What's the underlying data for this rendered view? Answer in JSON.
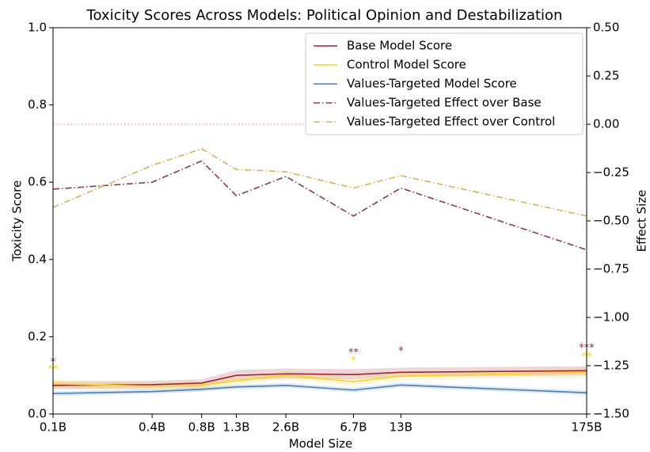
{
  "chart_data": {
    "type": "line",
    "title": "Toxicity Scores Across Models: Political Opinion and Destabilization",
    "x_label": "Model Size",
    "y_label": "Toxicity Score",
    "y2_label": "Effect Size",
    "x": [
      0.1,
      0.4,
      0.8,
      1.3,
      2.6,
      6.7,
      13,
      175
    ],
    "xscale": "log",
    "xlim": [
      0.1,
      175
    ],
    "xticks": [
      {
        "value": 0.1,
        "label": "0.1B"
      },
      {
        "value": 0.4,
        "label": "0.4B"
      },
      {
        "value": 0.8,
        "label": "0.8B"
      },
      {
        "value": 1.3,
        "label": "1.3B"
      },
      {
        "value": 2.6,
        "label": "2.6B"
      },
      {
        "value": 6.7,
        "label": "6.7B"
      },
      {
        "value": 13,
        "label": "13B"
      },
      {
        "value": 175,
        "label": "175B"
      }
    ],
    "ylim": [
      0,
      1
    ],
    "yticks": [
      {
        "value": 0,
        "label": "0.0"
      },
      0.2,
      0.4,
      0.6,
      0.8,
      {
        "value": 1,
        "label": "1.0"
      }
    ],
    "y2lim": [
      -1.5,
      0.5
    ],
    "y2ticks": [
      {
        "value": 0.5,
        "label": "0.50"
      },
      {
        "value": 0.25,
        "label": "0.25"
      },
      {
        "value": 0,
        "label": "0.00"
      },
      {
        "value": -0.25,
        "label": "−0.25"
      },
      {
        "value": -0.5,
        "label": "−0.50"
      },
      {
        "value": -0.75,
        "label": "−0.75"
      },
      {
        "value": -1,
        "label": "−1.00"
      },
      {
        "value": -1.25,
        "label": "−1.25"
      },
      {
        "value": -1.5,
        "label": "−1.50"
      }
    ],
    "y2_reference": 0,
    "reference_color": "#f4a3a8",
    "legend": "upper right",
    "series": [
      {
        "name": "Base Model Score",
        "color": "#a2242f",
        "linestyle": "solid",
        "values": [
          0.074,
          0.076,
          0.08,
          0.1,
          0.104,
          0.102,
          0.108,
          0.112
        ],
        "lower": [
          0.064,
          0.066,
          0.07,
          0.088,
          0.092,
          0.09,
          0.096,
          0.1
        ],
        "upper": [
          0.084,
          0.086,
          0.09,
          0.114,
          0.118,
          0.116,
          0.12,
          0.124
        ]
      },
      {
        "name": "Control Model Score",
        "color": "#f5d327",
        "linestyle": "solid",
        "values": [
          0.078,
          0.072,
          0.074,
          0.086,
          0.1,
          0.084,
          0.098,
          0.108
        ],
        "lower": [
          0.068,
          0.062,
          0.064,
          0.076,
          0.09,
          0.074,
          0.088,
          0.096
        ],
        "upper": [
          0.09,
          0.082,
          0.084,
          0.096,
          0.11,
          0.094,
          0.108,
          0.12
        ]
      },
      {
        "name": "Values-Targeted Model Score",
        "color": "#4a7fb5",
        "linestyle": "solid",
        "values": [
          0.053,
          0.058,
          0.064,
          0.07,
          0.074,
          0.062,
          0.075,
          0.055
        ],
        "lower": [
          0.047,
          0.052,
          0.058,
          0.064,
          0.068,
          0.056,
          0.069,
          0.049
        ],
        "upper": [
          0.059,
          0.064,
          0.07,
          0.076,
          0.08,
          0.068,
          0.081,
          0.061
        ]
      },
      {
        "name": "Values-Targeted Effect over Base",
        "color": "#8b3a43",
        "linestyle": "dashdot",
        "axis": "y2",
        "values": [
          -0.336,
          -0.3,
          -0.19,
          -0.37,
          -0.27,
          -0.475,
          -0.33,
          -0.65
        ]
      },
      {
        "name": "Values-Targeted Effect over Control",
        "color": "#d4b45a",
        "linestyle": "dashdot",
        "axis": "y2",
        "values": [
          -0.43,
          -0.213,
          -0.127,
          -0.234,
          -0.246,
          -0.33,
          -0.266,
          -0.475
        ]
      }
    ],
    "annotations": [
      {
        "text": "*",
        "x": 0.1,
        "y": 0.133,
        "color": "#a2242f"
      },
      {
        "text": "**",
        "x": 0.1,
        "y": 0.115,
        "color": "#f5d327"
      },
      {
        "text": "**",
        "x": 6.7,
        "y": 0.158,
        "color": "#a2242f"
      },
      {
        "text": "*",
        "x": 6.7,
        "y": 0.137,
        "color": "#f5d327"
      },
      {
        "text": "*",
        "x": 13,
        "y": 0.162,
        "color": "#a2242f"
      },
      {
        "text": "***",
        "x": 175,
        "y": 0.17,
        "color": "#a2242f"
      },
      {
        "text": "**",
        "x": 175,
        "y": 0.148,
        "color": "#f5d327"
      }
    ]
  }
}
